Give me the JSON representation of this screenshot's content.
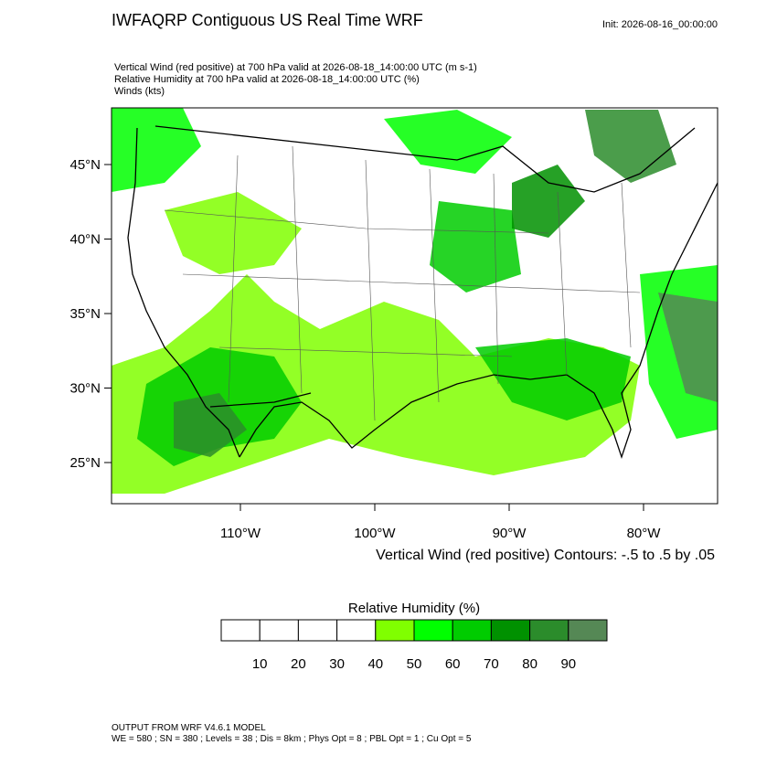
{
  "header": {
    "title": "IWFAQRP Contiguous US Real Time WRF",
    "init": "Init: 2026-08-16_00:00:00",
    "fields": [
      "Vertical Wind (red positive) at 700 hPa valid at 2026-08-18_14:00:00 UTC   (m s-1)",
      "Relative Humidity at 700 hPa valid at 2026-08-18_14:00:00 UTC   (%)",
      "Winds   (kts)"
    ]
  },
  "map": {
    "lat_ticks": [
      {
        "value": 45,
        "label": "45°N"
      },
      {
        "value": 40,
        "label": "40°N"
      },
      {
        "value": 35,
        "label": "35°N"
      },
      {
        "value": 30,
        "label": "30°N"
      },
      {
        "value": 25,
        "label": "25°N"
      }
    ],
    "lon_ticks": [
      {
        "value": -110,
        "label": "110°W"
      },
      {
        "value": -100,
        "label": "100°W"
      },
      {
        "value": -90,
        "label": "90°W"
      },
      {
        "value": -80,
        "label": "80°W"
      }
    ],
    "contour_note": "Vertical Wind (red positive) Contours: -.5 to .5 by .05"
  },
  "colorbar": {
    "title": "Relative Humidity  (%)",
    "colors": [
      "#ffffff",
      "#ffffff",
      "#ffffff",
      "#ffffff",
      "#80ff00",
      "#00ff00",
      "#00cc00",
      "#009100",
      "#2b8c2b",
      "#558855"
    ],
    "labels": [
      "10",
      "20",
      "30",
      "40",
      "50",
      "60",
      "70",
      "80",
      "90"
    ]
  },
  "footer": [
    "OUTPUT FROM WRF V4.6.1 MODEL",
    "WE = 580 ; SN = 380 ; Levels = 38 ; Dis = 8km ; Phys Opt = 8 ; PBL Opt = 1 ; Cu Opt = 5"
  ]
}
